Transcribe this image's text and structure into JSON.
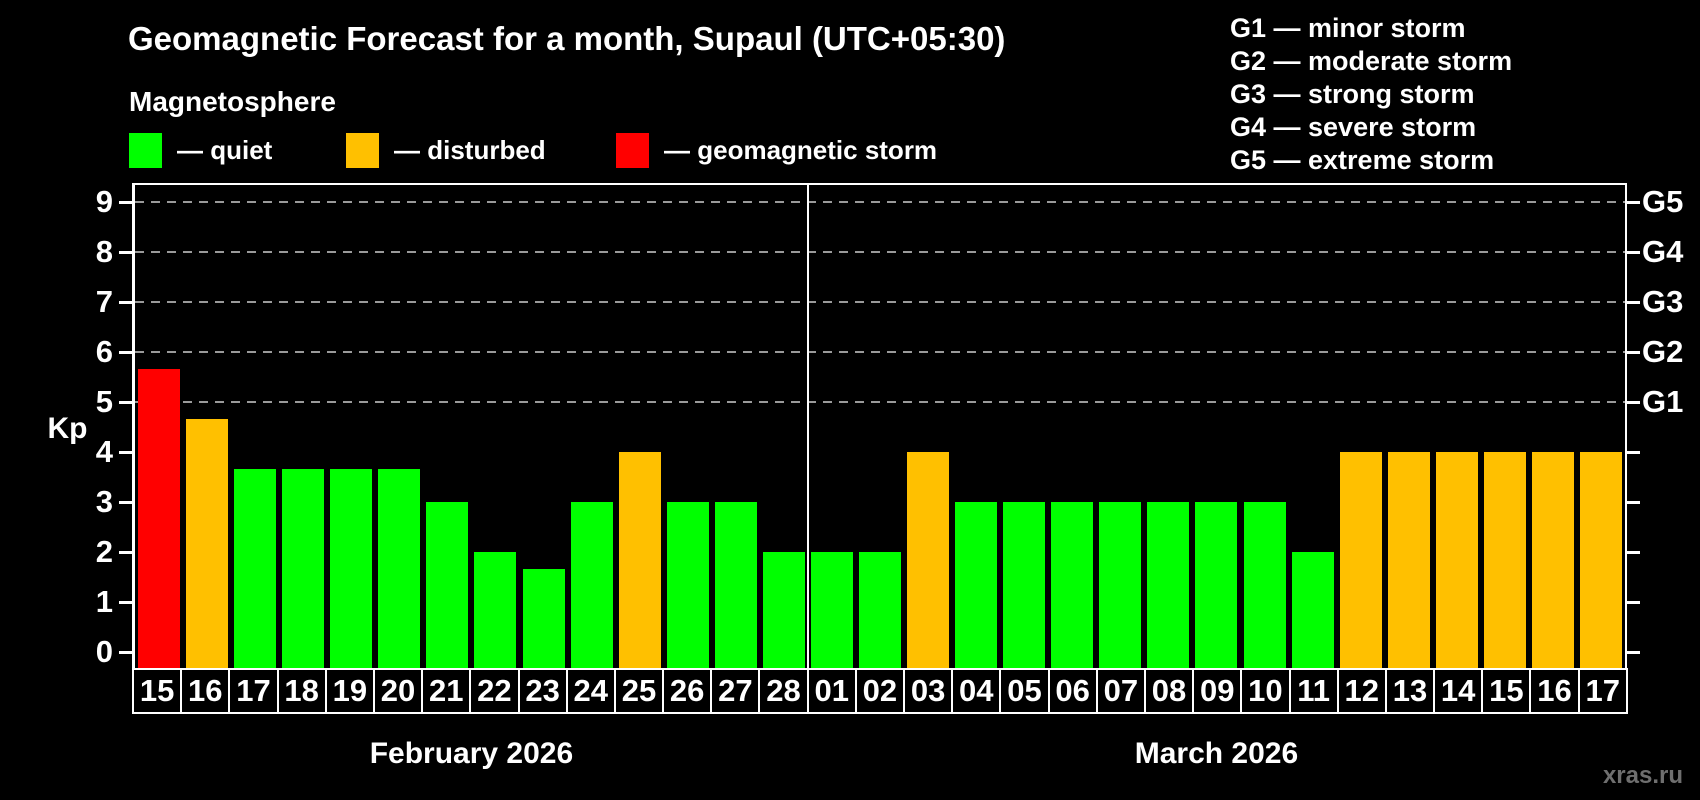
{
  "title": "Geomagnetic Forecast for a month, Supaul (UTC+05:30)",
  "subtitle": "Magnetosphere",
  "magnetosphere_legend": [
    {
      "status": "quiet",
      "label": "— quiet",
      "color": "#00ff00"
    },
    {
      "status": "disturbed",
      "label": "— disturbed",
      "color": "#ffc000"
    },
    {
      "status": "storm",
      "label": "— geomagnetic storm",
      "color": "#ff0000"
    }
  ],
  "g_scale_legend": [
    "G1 — minor storm",
    "G2 — moderate storm",
    "G3 — strong storm",
    "G4 — severe storm",
    "G5 — extreme storm"
  ],
  "watermark": "xras.ru",
  "chart_data": {
    "type": "bar",
    "ylabel": "Kp",
    "ylim": [
      -0.33,
      9.63
    ],
    "y_ticks": [
      0,
      1,
      2,
      3,
      4,
      5,
      6,
      7,
      8,
      9
    ],
    "gridlines": [
      5,
      6,
      7,
      8,
      9
    ],
    "grid": "dashed-horizontal",
    "legend_position": "top",
    "right_axis": [
      {
        "kp": 5,
        "label": "G1"
      },
      {
        "kp": 6,
        "label": "G2"
      },
      {
        "kp": 7,
        "label": "G3"
      },
      {
        "kp": 8,
        "label": "G4"
      },
      {
        "kp": 9,
        "label": "G5"
      }
    ],
    "colors": {
      "quiet": "#00ff00",
      "disturbed": "#ffc000",
      "storm": "#ff0000"
    },
    "months": [
      {
        "label": "February 2026",
        "days": [
          {
            "day": "15",
            "kp": 5.67,
            "status": "storm"
          },
          {
            "day": "16",
            "kp": 4.67,
            "status": "disturbed"
          },
          {
            "day": "17",
            "kp": 3.67,
            "status": "quiet"
          },
          {
            "day": "18",
            "kp": 3.67,
            "status": "quiet"
          },
          {
            "day": "19",
            "kp": 3.67,
            "status": "quiet"
          },
          {
            "day": "20",
            "kp": 3.67,
            "status": "quiet"
          },
          {
            "day": "21",
            "kp": 3,
            "status": "quiet"
          },
          {
            "day": "22",
            "kp": 2,
            "status": "quiet"
          },
          {
            "day": "23",
            "kp": 1.67,
            "status": "quiet"
          },
          {
            "day": "24",
            "kp": 3,
            "status": "quiet"
          },
          {
            "day": "25",
            "kp": 4,
            "status": "disturbed"
          },
          {
            "day": "26",
            "kp": 3,
            "status": "quiet"
          },
          {
            "day": "27",
            "kp": 3,
            "status": "quiet"
          },
          {
            "day": "28",
            "kp": 2,
            "status": "quiet"
          }
        ]
      },
      {
        "label": "March 2026",
        "days": [
          {
            "day": "01",
            "kp": 2,
            "status": "quiet"
          },
          {
            "day": "02",
            "kp": 2,
            "status": "quiet"
          },
          {
            "day": "03",
            "kp": 4,
            "status": "disturbed"
          },
          {
            "day": "04",
            "kp": 3,
            "status": "quiet"
          },
          {
            "day": "05",
            "kp": 3,
            "status": "quiet"
          },
          {
            "day": "06",
            "kp": 3,
            "status": "quiet"
          },
          {
            "day": "07",
            "kp": 3,
            "status": "quiet"
          },
          {
            "day": "08",
            "kp": 3,
            "status": "quiet"
          },
          {
            "day": "09",
            "kp": 3,
            "status": "quiet"
          },
          {
            "day": "10",
            "kp": 3,
            "status": "quiet"
          },
          {
            "day": "11",
            "kp": 2,
            "status": "quiet"
          },
          {
            "day": "12",
            "kp": 4,
            "status": "disturbed"
          },
          {
            "day": "13",
            "kp": 4,
            "status": "disturbed"
          },
          {
            "day": "14",
            "kp": 4,
            "status": "disturbed"
          },
          {
            "day": "15",
            "kp": 4,
            "status": "disturbed"
          },
          {
            "day": "16",
            "kp": 4,
            "status": "disturbed"
          },
          {
            "day": "17",
            "kp": 4,
            "status": "disturbed"
          }
        ]
      }
    ]
  }
}
